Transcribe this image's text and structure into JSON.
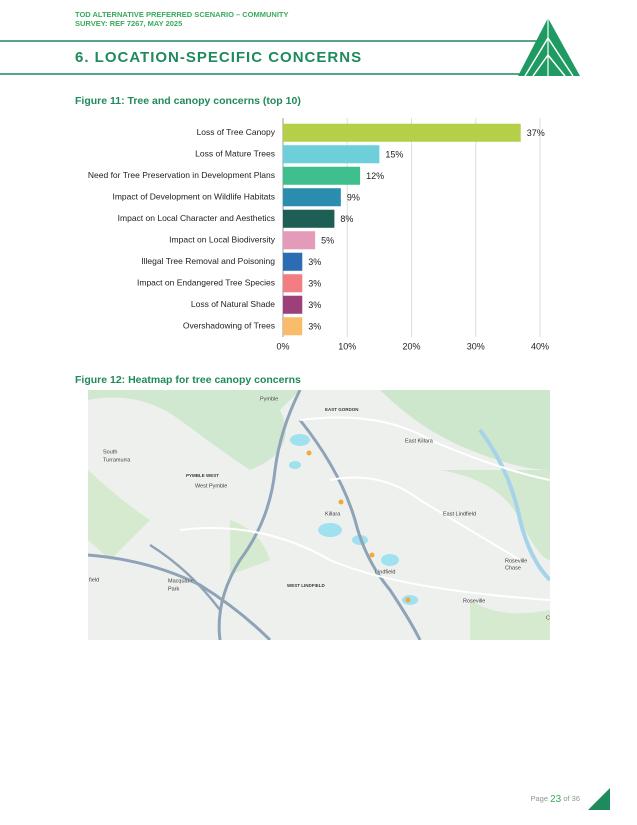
{
  "header": {
    "lines": [
      "TOD ALTERNATIVE PREFERRED SCENARIO – COMMUNITY",
      "SURVEY: REF 7267, MAY 2025"
    ],
    "section_title": "6. LOCATION-SPECIFIC CONCERNS"
  },
  "chart_data": {
    "type": "bar",
    "orientation": "horizontal",
    "title": "Figure 11: Tree and canopy concerns (top 10)",
    "categories": [
      "Loss of Tree Canopy",
      "Loss of Mature Trees",
      "Need for Tree Preservation in Development Plans",
      "Impact of Development on Wildlife Habitats",
      "Impact on Local Character and Aesthetics",
      "Impact on Local Biodiversity",
      "Illegal Tree Removal and Poisoning",
      "Impact on Endangered Tree Species",
      "Loss of Natural Shade",
      "Overshadowing of Trees"
    ],
    "values": [
      37,
      15,
      12,
      9,
      8,
      5,
      3,
      3,
      3,
      3
    ],
    "value_labels": [
      "37%",
      "15%",
      "12%",
      "9%",
      "8%",
      "5%",
      "3%",
      "3%",
      "3%",
      "3%"
    ],
    "colors": [
      "#b6cf48",
      "#6ccfd9",
      "#3fbf8e",
      "#2a8db0",
      "#1d5e55",
      "#e39bb9",
      "#2b6cb2",
      "#f27d82",
      "#9d3f78",
      "#f8bc6b"
    ],
    "xlim": [
      0,
      40
    ],
    "xticks": [
      {
        "value": 0,
        "label": "0%"
      },
      {
        "value": 10,
        "label": "10%"
      },
      {
        "value": 20,
        "label": "20%"
      },
      {
        "value": 30,
        "label": "30%"
      },
      {
        "value": 40,
        "label": "40%"
      }
    ],
    "grid": true
  },
  "map": {
    "title": "Figure 12: Heatmap for tree canopy concerns",
    "labels": [
      "Pymble",
      "EAST GORDON",
      "East Killara",
      "South",
      "Turramurra",
      "PYMBLE WEST",
      "West Pymble",
      "Killara",
      "East Lindfield",
      "Lindfield",
      "Roseville",
      "Chase",
      "Roseville",
      "Macquarie",
      "Park",
      "WEST LINDFIELD",
      "field",
      "Cas"
    ]
  },
  "footer": {
    "prefix": "Page",
    "page": "23",
    "suffix": "of 36"
  }
}
